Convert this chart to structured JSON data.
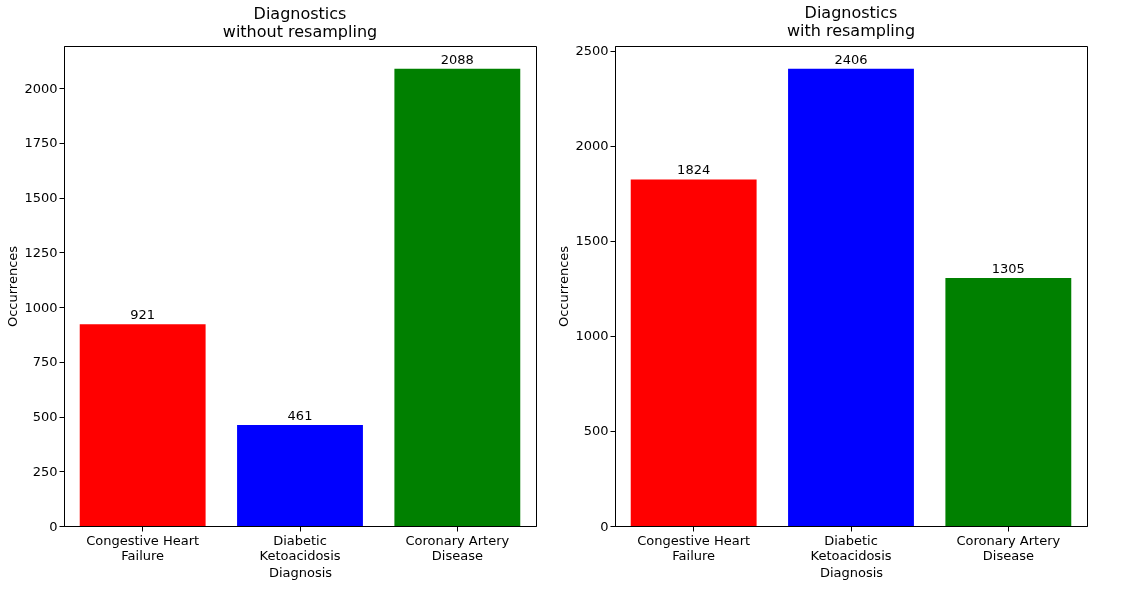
{
  "chart_data": [
    {
      "type": "bar",
      "title": "Diagnostics\nwithout resampling",
      "xlabel": "Diagnosis",
      "ylabel": "Occurrences",
      "categories": [
        "Congestive Heart Failure",
        "Diabetic Ketoacidosis",
        "Coronary Artery Disease"
      ],
      "values": [
        921,
        461,
        2088
      ],
      "colors": [
        "#ff0000",
        "#0000ff",
        "#008000"
      ],
      "ylim": [
        0,
        2192
      ],
      "yticks": [
        0,
        250,
        500,
        750,
        1000,
        1250,
        1500,
        1750,
        2000
      ],
      "grid": false,
      "data_labels": true
    },
    {
      "type": "bar",
      "title": "Diagnostics\nwith resampling",
      "xlabel": "Diagnosis",
      "ylabel": "Occurrences",
      "categories": [
        "Congestive Heart Failure",
        "Diabetic Ketoacidosis",
        "Coronary Artery Disease"
      ],
      "values": [
        1824,
        2406,
        1305
      ],
      "colors": [
        "#ff0000",
        "#0000ff",
        "#008000"
      ],
      "ylim": [
        0,
        2526
      ],
      "yticks": [
        0,
        500,
        1000,
        1500,
        2000,
        2500
      ],
      "grid": false,
      "data_labels": true
    }
  ]
}
